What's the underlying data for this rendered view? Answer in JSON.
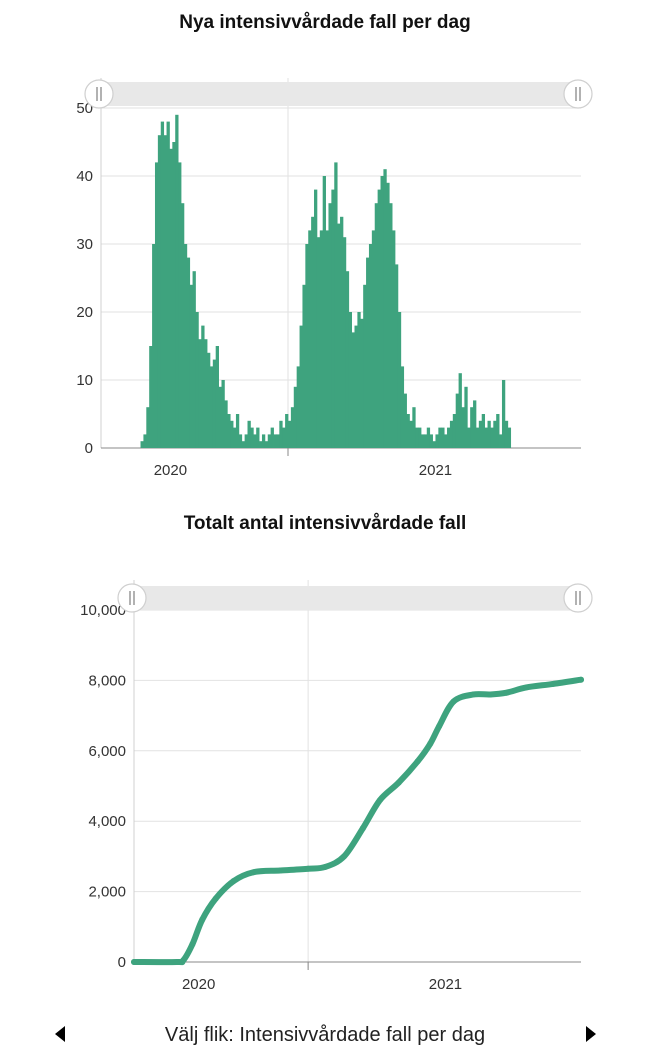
{
  "chart_data": [
    {
      "type": "bar",
      "title": "Nya intensivvårdade fall per dag",
      "xlabel": "",
      "ylabel": "",
      "x_range": [
        "2020-01-20",
        "2021-06-01"
      ],
      "ylim": [
        0,
        50
      ],
      "y_ticks": [
        "0",
        "10",
        "20",
        "30",
        "40",
        "50"
      ],
      "x_tick_labels": [
        {
          "label": "2020",
          "date": "2020-04-01"
        },
        {
          "label": "2021",
          "date": "2021-01-01"
        }
      ],
      "grid": true,
      "color": "#3ea37e",
      "series": [
        {
          "x_start": "2020-03-01",
          "x_step_days": 3,
          "values": [
            1,
            2,
            6,
            15,
            30,
            42,
            46,
            48,
            46,
            48,
            44,
            45,
            49,
            42,
            36,
            30,
            28,
            24,
            26,
            20,
            16,
            18,
            16,
            14,
            12,
            13,
            15,
            9,
            10,
            7,
            5,
            4,
            3,
            5,
            2,
            1,
            2,
            4,
            3,
            2,
            3,
            1,
            2,
            1,
            2,
            3,
            2,
            2,
            4,
            3,
            5,
            4,
            6,
            9,
            12,
            18,
            24,
            30,
            32,
            34,
            38,
            31,
            32,
            40,
            32,
            36,
            38,
            42,
            33,
            34,
            31,
            26,
            20,
            17,
            18,
            20,
            19,
            24,
            28,
            30,
            32,
            36,
            38,
            40,
            41,
            39,
            36,
            32,
            27,
            20,
            12,
            8,
            5,
            4,
            6,
            3,
            3,
            2,
            2,
            3,
            2,
            1,
            2,
            3,
            3,
            2,
            3,
            4,
            5,
            8,
            11,
            6,
            9,
            3,
            6,
            7,
            3,
            4,
            5,
            3,
            4,
            3,
            4,
            5,
            2,
            10,
            4,
            3
          ]
        }
      ]
    },
    {
      "type": "line",
      "title": "Totalt antal intensivvårdade fall",
      "xlabel": "",
      "ylabel": "",
      "x_range": [
        "2020-01-20",
        "2021-06-01"
      ],
      "ylim": [
        0,
        10000
      ],
      "y_ticks": [
        "0",
        "2,000",
        "4,000",
        "6,000",
        "8,000",
        "10,000"
      ],
      "x_tick_labels": [
        {
          "label": "2020",
          "date": "2020-04-01"
        },
        {
          "label": "2021",
          "date": "2021-01-01"
        }
      ],
      "grid": true,
      "color": "#3ea37e",
      "series": [
        {
          "x": [
            "2020-01-20",
            "2020-03-08",
            "2020-03-15",
            "2020-03-25",
            "2020-04-05",
            "2020-04-20",
            "2020-05-10",
            "2020-06-01",
            "2020-07-01",
            "2020-08-01",
            "2020-08-20",
            "2020-09-10",
            "2020-10-01",
            "2020-10-20",
            "2020-11-10",
            "2020-12-01",
            "2020-12-15",
            "2020-12-25",
            "2021-01-10",
            "2021-02-01",
            "2021-02-20",
            "2021-03-10",
            "2021-04-01",
            "2021-05-01",
            "2021-06-01"
          ],
          "y": [
            0,
            0,
            50,
            500,
            1200,
            1800,
            2300,
            2550,
            2600,
            2650,
            2700,
            3000,
            3800,
            4600,
            5100,
            5700,
            6200,
            6700,
            7400,
            7600,
            7600,
            7650,
            7800,
            7900,
            8020
          ]
        }
      ]
    }
  ],
  "footer": {
    "label": "Välj flik: Intensivvårdade fall per dag"
  }
}
